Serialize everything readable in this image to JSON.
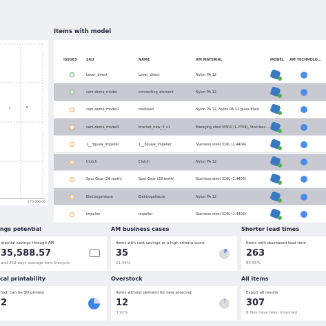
{
  "chart_panel": {
    "axis_label": "€75,000.00"
  },
  "table": {
    "title": "Items with model",
    "headers": [
      "ISSUES",
      "SKU",
      "NAME",
      "AM MATERIAL",
      "MODEL",
      "AM TECHNOLO..."
    ],
    "rows": [
      {
        "status": "ok",
        "sku": "Lever_direct",
        "name": "Lever_direct",
        "material": "Nylon PA 12"
      },
      {
        "status": "ok",
        "sku": "sam-demo_model",
        "name": "connecting_element",
        "material": "Nylon PA 12"
      },
      {
        "status": "warn",
        "sku": "sam-demo_model2",
        "name": "toolhead",
        "material": "Nylon PA 12, Nylon PA 12 glass-filled"
      },
      {
        "status": "warn",
        "sku": "sam-demo_model3",
        "name": "bracket_new_3_v1",
        "material": "Maraging steel M300 (1.2709), Stainless..."
      },
      {
        "status": "warn",
        "sku": "1__3guaw_impeller",
        "name": "1__3guaw_impeller",
        "material": "Stainless steel 316L (1.4404)"
      },
      {
        "status": "warn",
        "sku": "Clutch",
        "name": "Clutch",
        "material": "Nylon PA 12"
      },
      {
        "status": "warn",
        "sku": "Spur Gear (28 teeth)",
        "name": "Spur Gear (28 teeth)",
        "material": "Stainless steel 316L (1.4404)"
      },
      {
        "status": "warn",
        "sku": "Elektrogehäuse",
        "name": "Elektrogehäuse",
        "material": "Nylon PA 12"
      },
      {
        "status": "warn",
        "sku": "impeller",
        "name": "impeller",
        "material": "Stainless steel 316L (1.4404)"
      }
    ]
  },
  "cards": [
    {
      "section": "ngs potential",
      "caption": "otential savings through AM",
      "value": "35,588.57",
      "sub": "and 359 days average item lifecycle"
    },
    {
      "section": "AM business cases",
      "caption": "Items with cost savings or a high criteria score",
      "value": "35",
      "sub": "11.44%"
    },
    {
      "section": "Shorter lead times",
      "caption": "Items with decreased lead time",
      "value": "263",
      "sub": "85.95%"
    },
    {
      "section": "cal printability",
      "caption": "hich can be 3D printed",
      "value": "2"
    },
    {
      "section": "Overstock",
      "caption": "Items without demand for new sourcing",
      "value": "12",
      "sub": "3.92%"
    },
    {
      "section": "All items",
      "caption": "Export all results",
      "value": "307",
      "sub": "8 files have been imported"
    }
  ]
}
